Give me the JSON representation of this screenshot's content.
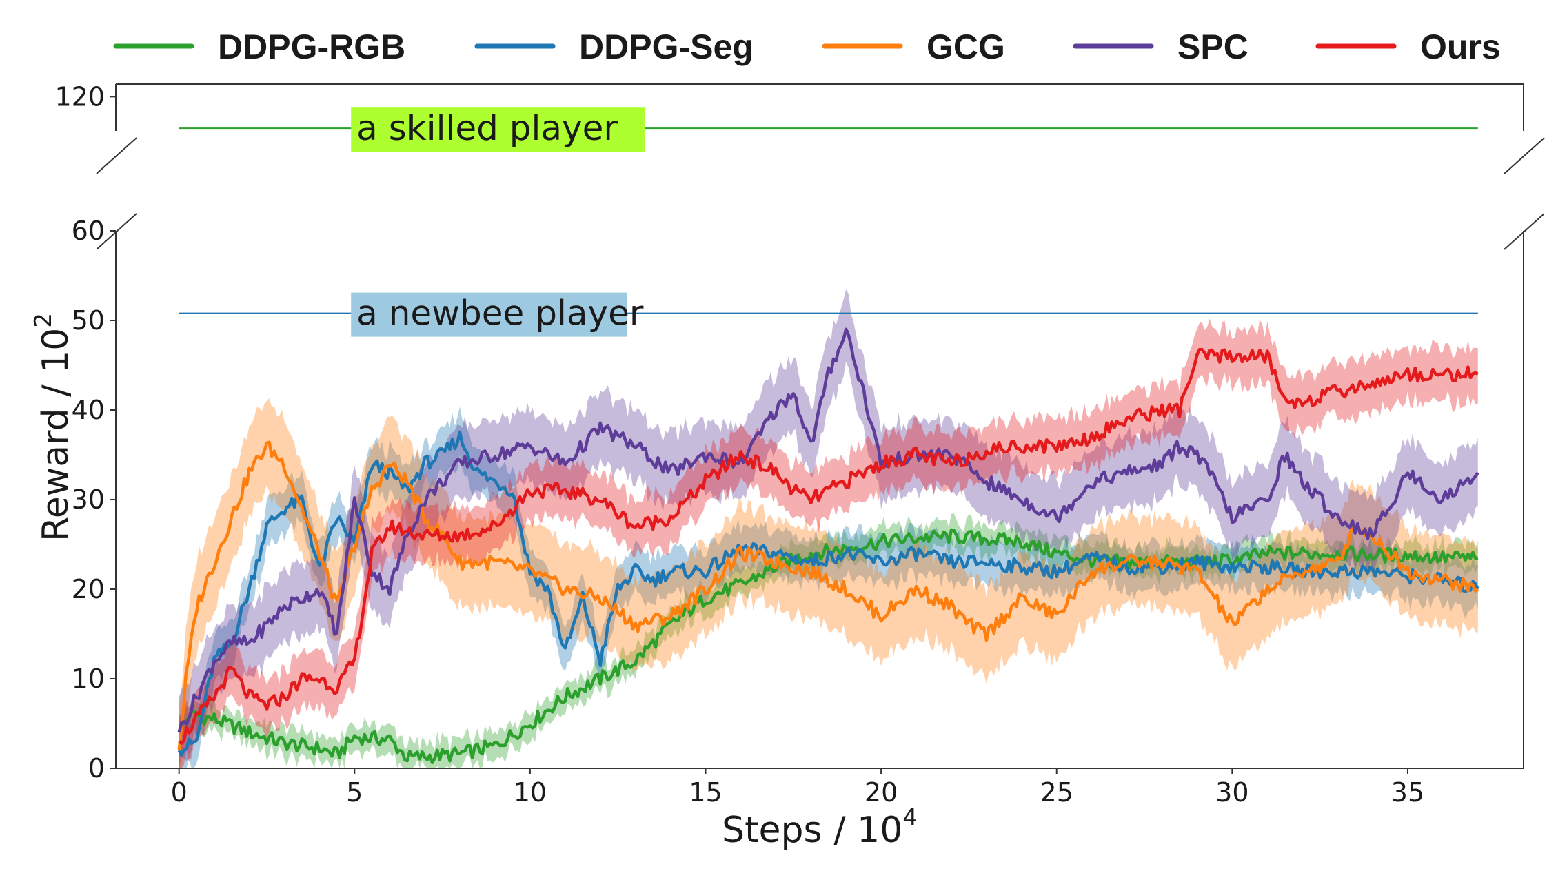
{
  "chart_data": {
    "type": "line",
    "title": "",
    "xlabel_main": "Steps / 10",
    "xlabel_exp": "4",
    "ylabel_main": "Reward / 10",
    "ylabel_exp": "2",
    "x_ticks": [
      "0",
      "5",
      "10",
      "15",
      "20",
      "25",
      "30",
      "35"
    ],
    "x_tick_values": [
      0,
      5,
      10,
      15,
      20,
      25,
      30,
      35
    ],
    "y_ticks_lower": [
      "0",
      "10",
      "20",
      "30",
      "40",
      "50",
      "60"
    ],
    "y_tick_values_lower": [
      0,
      10,
      20,
      30,
      40,
      50,
      60
    ],
    "y_ticks_upper": [
      "120"
    ],
    "y_tick_values_upper": [
      120
    ],
    "xlim": [
      -1.8,
      38.3
    ],
    "ylim_lower": [
      0,
      60
    ],
    "ylim_upper": [
      110,
      122
    ],
    "broken_axis": true,
    "grid": false,
    "legend_position": "top",
    "reference_lines": [
      {
        "label": "a skilled player",
        "y": 115,
        "color": "#2ca02c",
        "box_color": "#adff2f",
        "panel": "upper"
      },
      {
        "label": "a newbee player",
        "y": 50.8,
        "color": "#1f77b4",
        "box_color": "#9ecae1",
        "panel": "lower"
      }
    ],
    "series": [
      {
        "name": "DDPG-RGB",
        "color": "#2ca02c",
        "band": 1.5,
        "x": [
          0,
          0.3,
          1,
          2,
          3,
          4,
          4.5,
          5,
          6,
          6.5,
          7,
          8,
          9,
          10,
          11,
          12,
          13,
          14,
          15,
          16,
          17,
          18,
          19,
          20,
          21,
          22,
          23,
          24,
          25,
          26,
          27,
          28,
          29,
          30,
          31,
          32,
          33,
          34,
          35,
          36,
          37
        ],
        "y": [
          4,
          6,
          5.5,
          4,
          2.8,
          2.2,
          1.5,
          3.5,
          3.2,
          1.2,
          1.3,
          1.6,
          2.5,
          5,
          8,
          10,
          12,
          16,
          19,
          20.5,
          22.5,
          24,
          24.5,
          25.3,
          25.7,
          25.9,
          25.6,
          25.3,
          24,
          23.2,
          23,
          23,
          23,
          23.2,
          24,
          24,
          24,
          23.8,
          23.8,
          23.5,
          23.5
        ]
      },
      {
        "name": "DDPG-Seg",
        "color": "#1f77b4",
        "band": 2.5,
        "x": [
          0,
          0.5,
          1,
          1.5,
          2,
          2.5,
          3,
          3.5,
          4,
          4.5,
          5,
          5.5,
          6,
          6.5,
          7,
          7.5,
          8,
          8.5,
          9,
          9.5,
          10,
          10.5,
          11,
          11.5,
          12,
          12.5,
          13,
          13.5,
          14,
          15,
          16,
          17,
          18,
          19,
          20,
          21,
          22,
          23,
          24,
          25,
          26,
          27,
          28,
          29,
          30,
          31,
          32,
          33,
          34,
          35,
          36,
          37
        ],
        "y": [
          2,
          3,
          12,
          14,
          20,
          27,
          29,
          30,
          22,
          28,
          25,
          34,
          33,
          31,
          34,
          35,
          37,
          33,
          32,
          31,
          22,
          20,
          13,
          19,
          12,
          20,
          22,
          21,
          22,
          22,
          24.5,
          24,
          23,
          24,
          23,
          24,
          23,
          23,
          22.5,
          22,
          23.5,
          22.5,
          22.5,
          23,
          22.5,
          22.5,
          22,
          22,
          22,
          21.5,
          21,
          20
        ]
      },
      {
        "name": "GCG",
        "color": "#ff7f0e",
        "band": 5,
        "x": [
          0,
          0.2,
          0.5,
          1,
          1.5,
          2,
          2.5,
          3,
          3.5,
          4,
          4.5,
          5,
          5.5,
          6,
          6.5,
          7,
          7.5,
          8,
          9,
          10,
          11,
          12,
          13,
          14,
          15,
          16,
          17,
          18,
          19,
          20,
          21,
          22,
          22.5,
          23,
          24,
          25,
          26,
          27,
          28,
          29,
          30,
          31,
          32,
          33,
          33.5,
          34,
          35,
          36,
          37
        ],
        "y": [
          2,
          10,
          18,
          23,
          28,
          33,
          36,
          34,
          29,
          24,
          18,
          25,
          31,
          34,
          32,
          28,
          26,
          23,
          23,
          22,
          20,
          19,
          16,
          17,
          20,
          24,
          23,
          22,
          20,
          17,
          20,
          18,
          16,
          15,
          19,
          17,
          22,
          23,
          23,
          22,
          16,
          20,
          22,
          23,
          27,
          26,
          22,
          21,
          20
        ]
      },
      {
        "name": "SPC",
        "color": "#5e3c99",
        "band": 4,
        "x": [
          0,
          1,
          1.5,
          2,
          2.5,
          3,
          3.5,
          4,
          4.5,
          5,
          5.5,
          6,
          6.5,
          7,
          7.5,
          8,
          9,
          10,
          11,
          12,
          13,
          14,
          15,
          16,
          17,
          17.5,
          18,
          18.5,
          19,
          19.5,
          20,
          21,
          22,
          23,
          24,
          25,
          26,
          27,
          28,
          28.5,
          29,
          29.5,
          30,
          31,
          31.5,
          32,
          33,
          34,
          35,
          36,
          37
        ],
        "y": [
          4,
          12,
          14,
          14,
          16,
          18,
          19,
          20,
          15,
          30,
          22,
          20,
          26,
          30,
          32,
          34,
          35,
          36,
          34,
          38,
          36,
          33,
          35,
          34,
          40,
          42,
          36,
          44,
          49,
          42,
          34,
          35,
          35,
          32,
          30,
          28,
          32,
          33,
          34,
          36,
          35,
          32,
          28,
          30,
          35,
          32,
          28,
          26,
          33,
          30,
          33
        ]
      },
      {
        "name": "Ours",
        "color": "#e41a1c",
        "band": 3,
        "x": [
          0,
          1,
          1.5,
          2,
          2.5,
          3,
          3.5,
          4,
          4.5,
          5,
          5.5,
          6,
          7,
          8,
          9,
          10,
          11,
          12,
          13,
          14,
          15,
          16,
          17,
          17.5,
          18,
          19,
          20,
          21,
          22,
          23,
          24,
          25,
          26,
          27,
          28,
          28.5,
          29,
          30,
          31,
          31.5,
          32,
          33,
          34,
          35,
          36,
          37
        ],
        "y": [
          3,
          8,
          11,
          8,
          7,
          8,
          10,
          10,
          9,
          12,
          24,
          27,
          26,
          26,
          27,
          31,
          31,
          30,
          27,
          28,
          32,
          35,
          33,
          31,
          30,
          32,
          34,
          35,
          34,
          35.5,
          36,
          36,
          37,
          39,
          40,
          40,
          46,
          46,
          46,
          41,
          41,
          42,
          43,
          44,
          44,
          44
        ]
      }
    ]
  }
}
